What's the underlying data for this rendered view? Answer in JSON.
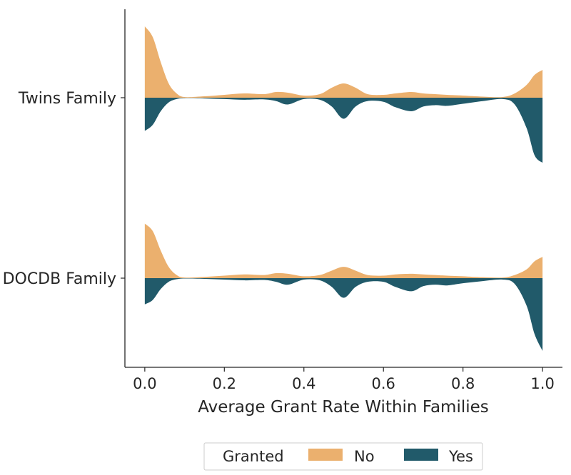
{
  "chart_data": {
    "type": "violin",
    "xlabel": "Average Grant Rate Within Families",
    "xlim": [
      -0.05,
      1.05
    ],
    "xticks": [
      0.0,
      0.2,
      0.4,
      0.6,
      0.8,
      1.0
    ],
    "xtick_labels": [
      "0.0",
      "0.2",
      "0.4",
      "0.6",
      "0.8",
      "1.0"
    ],
    "categories": [
      "Twins Family",
      "DOCDB Family"
    ],
    "split": true,
    "legend": {
      "title": "Granted",
      "position": "bottom-center",
      "entries": [
        {
          "label": "No",
          "color": "#ebb06e"
        },
        {
          "label": "Yes",
          "color": "#215a6a"
        }
      ]
    },
    "x": [
      0.0,
      0.02,
      0.04,
      0.06,
      0.08,
      0.1,
      0.15,
      0.2,
      0.25,
      0.3,
      0.33,
      0.36,
      0.4,
      0.44,
      0.47,
      0.5,
      0.53,
      0.56,
      0.6,
      0.63,
      0.67,
      0.7,
      0.73,
      0.76,
      0.8,
      0.85,
      0.9,
      0.93,
      0.96,
      0.98,
      1.0
    ],
    "series": [
      {
        "name": "No",
        "category": "Twins Family",
        "side": "top",
        "color": "#ebb06e",
        "density": [
          1.0,
          0.85,
          0.5,
          0.2,
          0.06,
          0.01,
          0.02,
          0.04,
          0.06,
          0.05,
          0.08,
          0.07,
          0.03,
          0.05,
          0.14,
          0.2,
          0.14,
          0.05,
          0.04,
          0.06,
          0.08,
          0.06,
          0.05,
          0.04,
          0.03,
          0.015,
          0.01,
          0.06,
          0.18,
          0.32,
          0.39
        ]
      },
      {
        "name": "Yes",
        "category": "Twins Family",
        "side": "bottom",
        "color": "#215a6a",
        "density": [
          0.49,
          0.4,
          0.2,
          0.07,
          0.02,
          0.005,
          0.01,
          0.02,
          0.03,
          0.025,
          0.05,
          0.1,
          0.02,
          0.03,
          0.13,
          0.31,
          0.13,
          0.05,
          0.06,
          0.14,
          0.2,
          0.13,
          0.11,
          0.12,
          0.09,
          0.05,
          0.02,
          0.1,
          0.45,
          0.85,
          0.96
        ]
      },
      {
        "name": "No",
        "category": "DOCDB Family",
        "side": "top",
        "color": "#ebb06e",
        "density": [
          0.87,
          0.75,
          0.44,
          0.18,
          0.05,
          0.01,
          0.02,
          0.04,
          0.06,
          0.05,
          0.08,
          0.07,
          0.03,
          0.05,
          0.12,
          0.18,
          0.12,
          0.05,
          0.04,
          0.06,
          0.07,
          0.06,
          0.05,
          0.04,
          0.03,
          0.015,
          0.01,
          0.05,
          0.14,
          0.27,
          0.34
        ]
      },
      {
        "name": "Yes",
        "category": "DOCDB Family",
        "side": "bottom",
        "color": "#215a6a",
        "density": [
          0.36,
          0.3,
          0.15,
          0.05,
          0.015,
          0.005,
          0.01,
          0.02,
          0.03,
          0.025,
          0.05,
          0.09,
          0.02,
          0.03,
          0.12,
          0.27,
          0.12,
          0.05,
          0.05,
          0.12,
          0.18,
          0.11,
          0.09,
          0.1,
          0.07,
          0.04,
          0.02,
          0.08,
          0.38,
          0.77,
          1.0
        ]
      }
    ]
  }
}
